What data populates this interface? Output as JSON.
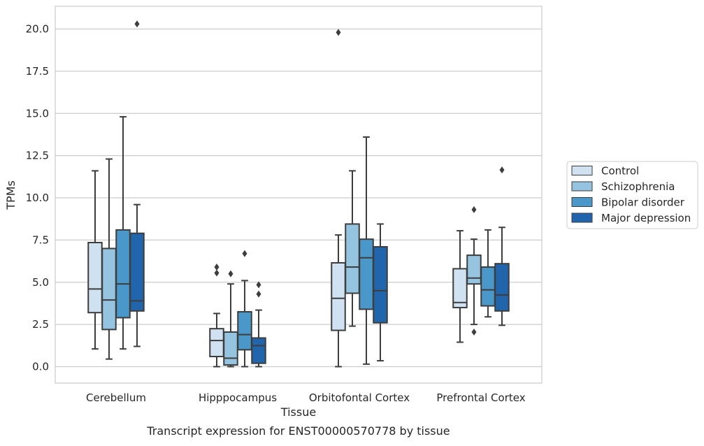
{
  "chart_data": {
    "type": "box",
    "title": "Transcript expression for ENST00000570778 by tissue",
    "xlabel": "Tissue",
    "ylabel": "TPMs",
    "ylim": [
      -1.0,
      21.3
    ],
    "yticks": [
      "0.0",
      "2.5",
      "5.0",
      "7.5",
      "10.0",
      "12.5",
      "15.0",
      "17.5",
      "20.0"
    ],
    "grid": "horizontal",
    "legend_position": "right",
    "categories": [
      "Cerebellum",
      "Hipppocampus",
      "Orbitofontal Cortex",
      "Prefrontal Cortex"
    ],
    "series": [
      {
        "name": "Control",
        "color": "#d0e1f2",
        "boxes": [
          {
            "whisker_low": 1.05,
            "q1": 3.2,
            "median": 4.6,
            "q3": 7.35,
            "whisker_high": 11.6,
            "outliers": []
          },
          {
            "whisker_low": 0.0,
            "q1": 0.6,
            "median": 1.55,
            "q3": 2.25,
            "whisker_high": 3.15,
            "outliers": [
              5.55,
              5.9
            ]
          },
          {
            "whisker_low": 0.0,
            "q1": 2.15,
            "median": 4.05,
            "q3": 6.15,
            "whisker_high": 7.8,
            "outliers": [
              19.8
            ]
          },
          {
            "whisker_low": 1.45,
            "q1": 3.5,
            "median": 3.8,
            "q3": 5.8,
            "whisker_high": 8.05,
            "outliers": []
          }
        ]
      },
      {
        "name": "Schizophrenia",
        "color": "#94c4df",
        "boxes": [
          {
            "whisker_low": 0.45,
            "q1": 2.2,
            "median": 3.95,
            "q3": 7.0,
            "whisker_high": 12.3,
            "outliers": []
          },
          {
            "whisker_low": 0.0,
            "q1": 0.1,
            "median": 0.5,
            "q3": 2.05,
            "whisker_high": 4.9,
            "outliers": [
              5.5
            ]
          },
          {
            "whisker_low": 2.4,
            "q1": 4.35,
            "median": 5.9,
            "q3": 8.45,
            "whisker_high": 11.6,
            "outliers": []
          },
          {
            "whisker_low": 2.5,
            "q1": 4.9,
            "median": 5.25,
            "q3": 6.6,
            "whisker_high": 7.55,
            "outliers": [
              2.05,
              9.3
            ]
          }
        ]
      },
      {
        "name": "Bipolar disorder",
        "color": "#4a98c9",
        "boxes": [
          {
            "whisker_low": 1.05,
            "q1": 2.9,
            "median": 4.9,
            "q3": 8.1,
            "whisker_high": 14.8,
            "outliers": []
          },
          {
            "whisker_low": 0.0,
            "q1": 1.0,
            "median": 1.9,
            "q3": 3.25,
            "whisker_high": 5.1,
            "outliers": [
              6.7
            ]
          },
          {
            "whisker_low": 0.15,
            "q1": 3.4,
            "median": 6.45,
            "q3": 7.55,
            "whisker_high": 13.6,
            "outliers": []
          },
          {
            "whisker_low": 2.95,
            "q1": 3.6,
            "median": 4.55,
            "q3": 5.9,
            "whisker_high": 8.1,
            "outliers": []
          }
        ]
      },
      {
        "name": "Major depression",
        "color": "#2166ac",
        "boxes": [
          {
            "whisker_low": 1.2,
            "q1": 3.3,
            "median": 3.9,
            "q3": 7.9,
            "whisker_high": 9.6,
            "outliers": [
              20.3
            ]
          },
          {
            "whisker_low": 0.0,
            "q1": 0.2,
            "median": 1.25,
            "q3": 1.7,
            "whisker_high": 3.35,
            "outliers": [
              4.3,
              4.85
            ]
          },
          {
            "whisker_low": 0.35,
            "q1": 2.6,
            "median": 4.5,
            "q3": 7.1,
            "whisker_high": 8.45,
            "outliers": []
          },
          {
            "whisker_low": 2.45,
            "q1": 3.3,
            "median": 4.25,
            "q3": 6.1,
            "whisker_high": 8.25,
            "outliers": [
              11.65
            ]
          }
        ]
      }
    ]
  }
}
